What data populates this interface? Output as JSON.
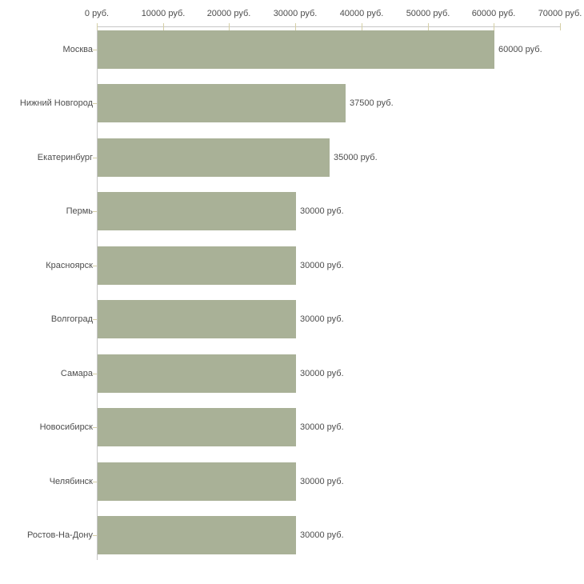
{
  "chart_data": {
    "type": "bar",
    "orientation": "horizontal",
    "title": "",
    "xlabel": "",
    "ylabel": "",
    "unit": "руб.",
    "xlim": [
      0,
      70000
    ],
    "grid": false,
    "legend": null,
    "categories": [
      "Москва",
      "Нижний Новгород",
      "Екатеринбург",
      "Пермь",
      "Красноярск",
      "Волгоград",
      "Самара",
      "Новосибирск",
      "Челябинск",
      "Ростов-На-Дону"
    ],
    "values": [
      60000,
      37500,
      35000,
      30000,
      30000,
      30000,
      30000,
      30000,
      30000,
      30000
    ],
    "value_labels": [
      "60000 руб.",
      "37500 руб.",
      "35000 руб.",
      "30000 руб.",
      "30000 руб.",
      "30000 руб.",
      "30000 руб.",
      "30000 руб.",
      "30000 руб.",
      "30000 руб."
    ],
    "x_tick_values": [
      0,
      10000,
      20000,
      30000,
      40000,
      50000,
      60000,
      70000
    ],
    "x_tick_labels": [
      "0 руб.",
      "10000 руб.",
      "20000 руб.",
      "30000 руб.",
      "40000 руб.",
      "50000 руб.",
      "60000 руб.",
      "70000 руб."
    ],
    "colors": {
      "bar": "#a9b197",
      "axis_line": "#c6c6c6",
      "tick_mark": "#d5cfa6",
      "text": "#4d4d4d",
      "background": "#ffffff"
    }
  }
}
